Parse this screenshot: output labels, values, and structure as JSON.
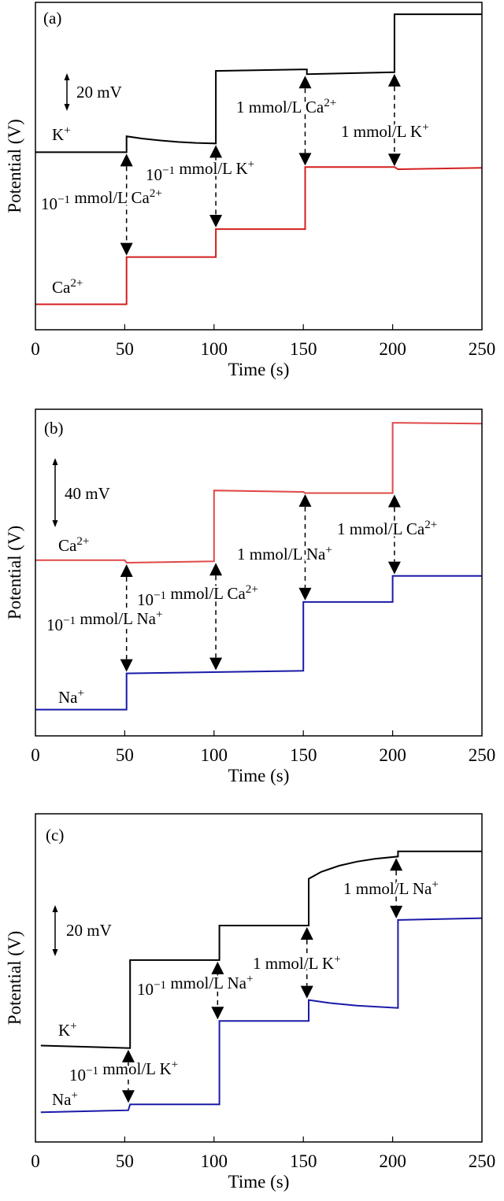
{
  "chart_data": [
    {
      "type": "line",
      "panel_label": "(a)",
      "xlabel": "Time (s)",
      "ylabel": "Potential (V)",
      "xlim": [
        0,
        250
      ],
      "ylim": [
        0,
        173.3
      ],
      "xticks": [
        "0",
        "50",
        "100",
        "150",
        "200",
        "250"
      ],
      "scale_bar": {
        "label": "20 mV",
        "mV": 20
      },
      "series": [
        {
          "name": "K⁺",
          "color": "#000000",
          "x": [
            0,
            51,
            51,
            60,
            70,
            80,
            90,
            101,
            101,
            150,
            152,
            152,
            201,
            201,
            250
          ],
          "y": [
            94,
            94,
            102.4,
            101.2,
            100.2,
            99.4,
            98.9,
            98.6,
            137,
            137.8,
            137.8,
            135.3,
            136.3,
            167,
            167
          ]
        },
        {
          "name": "Ca²⁺",
          "color": "#d41f1f",
          "x": [
            0,
            51,
            51,
            101,
            101,
            151,
            151,
            201,
            203,
            250
          ],
          "y": [
            13.5,
            13.5,
            38.5,
            38.5,
            53.3,
            53.3,
            86.1,
            86.1,
            85,
            85.7
          ]
        }
      ],
      "annotations": [
        {
          "text": "10⁻¹ mmol/L Ca²⁺",
          "x": 51,
          "from": 94,
          "to": 38.5
        },
        {
          "text": "10⁻¹ mmol/L K⁺",
          "x": 101,
          "from": 98.6,
          "to": 53.3
        },
        {
          "text": "1 mmol/L Ca²⁺",
          "x": 151,
          "from": 135.3,
          "to": 86.1
        },
        {
          "text": "1 mmol/L K⁺",
          "x": 201,
          "from": 136.3,
          "to": 85.7
        }
      ]
    },
    {
      "type": "line",
      "panel_label": "(b)",
      "xlabel": "Time (s)",
      "ylabel": "Potential (V)",
      "xlim": [
        0,
        250
      ],
      "ylim": [
        0,
        188.6
      ],
      "xticks": [
        "0",
        "50",
        "100",
        "150",
        "200",
        "250"
      ],
      "scale_bar": {
        "label": "40 mV",
        "mV": 40
      },
      "series": [
        {
          "name": "Ca²⁺",
          "color": "#e04848",
          "x": [
            0,
            50,
            51,
            100,
            100,
            150,
            151,
            200,
            200,
            250
          ],
          "y": [
            101.5,
            101.5,
            100,
            100.8,
            141.7,
            140.9,
            140.2,
            140.2,
            180.8,
            180.3
          ]
        },
        {
          "name": "Na⁺",
          "color": "#1a1aa8",
          "x": [
            0,
            51,
            51,
            150,
            150,
            200,
            200,
            250
          ],
          "y": [
            15.2,
            15.2,
            36.1,
            37.6,
            77.3,
            77.3,
            92.4,
            92.4
          ]
        }
      ],
      "annotations": [
        {
          "text": "10⁻¹ mmol/L Na⁺",
          "x": 51,
          "from": 100,
          "to": 36.1
        },
        {
          "text": "10⁻¹ mmol/L Ca²⁺",
          "x": 101,
          "from": 100.8,
          "to": 37
        },
        {
          "text": "1 mmol/L Na⁺",
          "x": 151,
          "from": 140.5,
          "to": 77.3
        },
        {
          "text": "1 mmol/L Ca²⁺",
          "x": 201,
          "from": 140.2,
          "to": 92.4
        }
      ]
    },
    {
      "type": "line",
      "panel_label": "(c)",
      "xlabel": "Time (s)",
      "ylabel": "Potential (V)",
      "xlim": [
        0,
        250
      ],
      "ylim": [
        0,
        128.3
      ],
      "xticks": [
        "0",
        "50",
        "100",
        "150",
        "200",
        "250"
      ],
      "scale_bar": {
        "label": "20 mV",
        "mV": 20
      },
      "series": [
        {
          "name": "K⁺",
          "color": "#000000",
          "x": [
            3,
            53,
            53,
            103,
            103,
            153,
            153,
            160,
            170,
            180,
            190,
            203,
            203,
            250
          ],
          "y": [
            37.7,
            36.7,
            71.1,
            71.1,
            84.6,
            84.6,
            102.9,
            105.6,
            108,
            109.6,
            110.7,
            111.6,
            113.6,
            113.6
          ]
        },
        {
          "name": "Na⁺",
          "color": "#1a1aa8",
          "x": [
            3,
            52,
            53,
            103,
            103,
            153,
            153,
            165,
            180,
            203,
            203,
            250
          ],
          "y": [
            11.6,
            12.4,
            14.7,
            14.7,
            47.3,
            47.3,
            55.5,
            54.3,
            53.3,
            52.4,
            86.8,
            87.5
          ]
        }
      ],
      "annotations": [
        {
          "text": "10⁻¹ mmol/L K⁺",
          "x": 52,
          "from": 36.7,
          "to": 14.7
        },
        {
          "text": "10⁻¹ mmol/L Na⁺",
          "x": 102,
          "from": 71.1,
          "to": 47.3
        },
        {
          "text": "1 mmol/L K⁺",
          "x": 152,
          "from": 84.6,
          "to": 55.5
        },
        {
          "text": "1 mmol/L Na⁺",
          "x": 202,
          "from": 111.6,
          "to": 86.8
        }
      ]
    }
  ]
}
